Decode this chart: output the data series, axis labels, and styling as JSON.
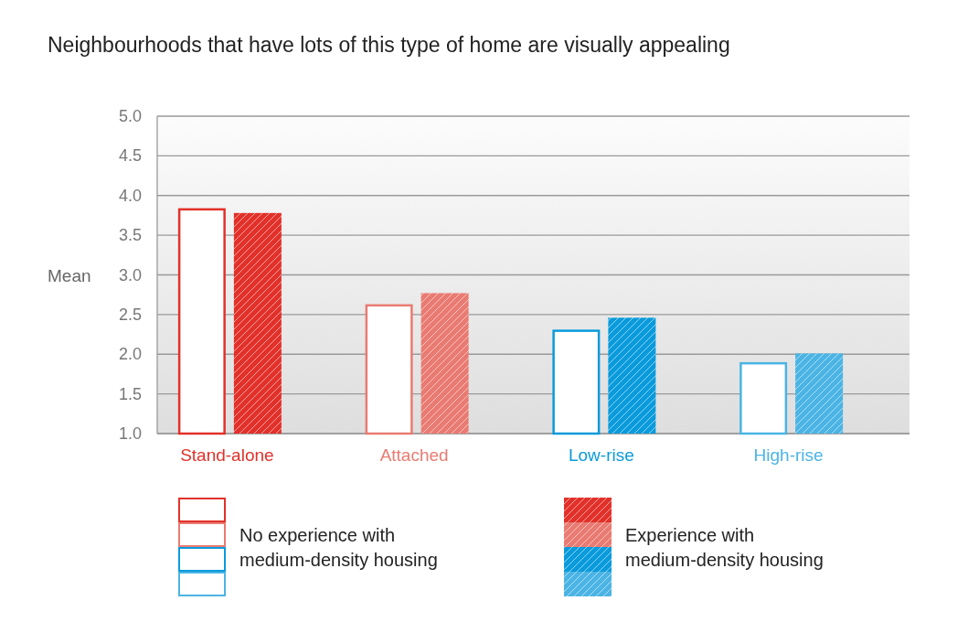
{
  "chart_data": {
    "type": "bar",
    "title": "Neighbourhoods that have lots of this type of home are visually appealing",
    "ylabel": "Mean",
    "categories": [
      "Stand-alone",
      "Attached",
      "Low-rise",
      "High-rise"
    ],
    "series": [
      {
        "name": "No experience with medium-density housing",
        "colors": [
          "#e2312a",
          "#e97b72",
          "#0a9bdc",
          "#4bb4e4"
        ],
        "values": [
          3.84,
          2.63,
          2.31,
          1.9
        ]
      },
      {
        "name": "Experience with medium-density housing",
        "colors": [
          "#e2312a",
          "#e97b72",
          "#0a9bdc",
          "#4bb4e4"
        ],
        "values": [
          3.78,
          2.77,
          2.46,
          2.01
        ]
      }
    ],
    "ylim": [
      1,
      5
    ],
    "yticks": [
      {
        "value": 1,
        "label": "1.0"
      },
      {
        "value": 1.5,
        "label": "1.5"
      },
      {
        "value": 2,
        "label": "2.0"
      },
      {
        "value": 2.5,
        "label": "2.5"
      },
      {
        "value": 3,
        "label": "3.0"
      },
      {
        "value": 3.5,
        "label": "3.5"
      },
      {
        "value": 4,
        "label": "4.0"
      },
      {
        "value": 4.5,
        "label": "4.5"
      },
      {
        "value": 5,
        "label": "5.0"
      }
    ],
    "grid": "y",
    "legend": "bottom"
  }
}
